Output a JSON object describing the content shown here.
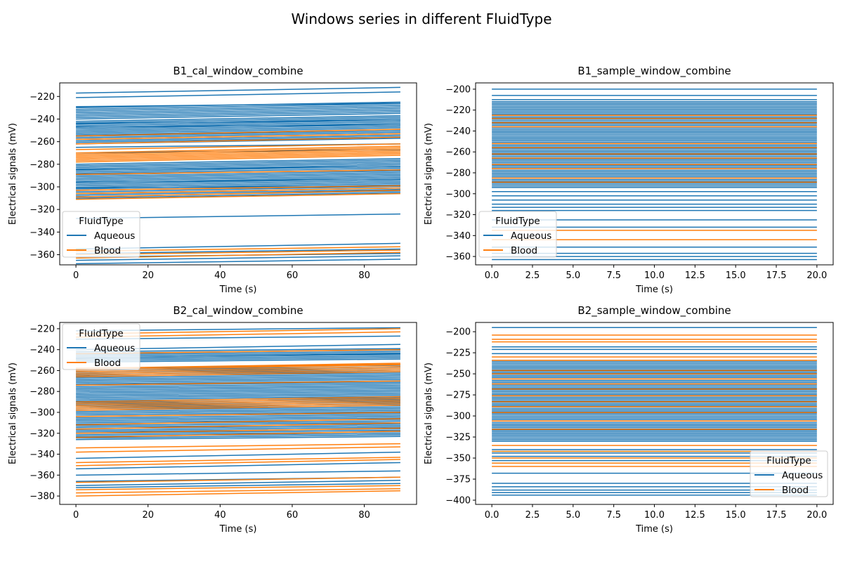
{
  "figure": {
    "suptitle": "Windows series in different FluidType",
    "colors": {
      "Aqueous": "#1f77b4",
      "Blood": "#ff7f0e"
    }
  },
  "chart_data": [
    {
      "type": "line",
      "title": "B1_cal_window_combine",
      "xlabel": "Time (s)",
      "ylabel": "Electrical signals (mV)",
      "xlim": [
        -4.5,
        94.5
      ],
      "ylim": [
        -369,
        -208
      ],
      "xticks": [
        0,
        20,
        40,
        60,
        80
      ],
      "xtick_labels": [
        "0",
        "20",
        "40",
        "60",
        "80"
      ],
      "yticks": [
        -220,
        -240,
        -260,
        -280,
        -300,
        -320,
        -340,
        -360
      ],
      "ytick_labels": [
        "−220",
        "−240",
        "−260",
        "−280",
        "−300",
        "−320",
        "−340",
        "−360"
      ],
      "legend": {
        "title": "FluidType",
        "entries": [
          "Aqueous",
          "Blood"
        ],
        "loc": "lower-left"
      },
      "series": [
        {
          "name": "Aqueous",
          "x": [
            0,
            90
          ],
          "bands": [
            [
              -240,
              -230
            ],
            [
              -262,
              -242
            ],
            [
              -310,
              -280
            ]
          ],
          "lines": [
            [
              -217,
              -212
            ],
            [
              -221,
              -216
            ],
            [
              -229,
              -226
            ],
            [
              -244,
              -241
            ],
            [
              -247,
              -245
            ],
            [
              -265,
              -262
            ],
            [
              -270,
              -267
            ],
            [
              -285,
              -282
            ],
            [
              -296,
              -293
            ],
            [
              -301,
              -299
            ],
            [
              -328,
              -324
            ],
            [
              -355,
              -350
            ],
            [
              -359,
              -355
            ],
            [
              -362,
              -359
            ],
            [
              -365,
              -361
            ],
            [
              -368,
              -364
            ]
          ]
        },
        {
          "name": "Blood",
          "x": [
            0,
            90
          ],
          "bands": [
            [
              -278,
              -270
            ]
          ],
          "lines": [
            [
              -255,
              -249
            ],
            [
              -258,
              -253
            ],
            [
              -262,
              -256
            ],
            [
              -267,
              -262
            ],
            [
              -289,
              -285
            ],
            [
              -303,
              -299
            ],
            [
              -306,
              -301
            ],
            [
              -309,
              -303
            ],
            [
              -311,
              -306
            ],
            [
              -357,
              -353
            ],
            [
              -360,
              -356
            ],
            [
              -363,
              -358
            ]
          ]
        }
      ]
    },
    {
      "type": "line",
      "title": "B1_sample_window_combine",
      "xlabel": "Time (s)",
      "ylabel": "Electrical signals (mV)",
      "xlim": [
        -1.0,
        21.0
      ],
      "ylim": [
        -368,
        -194
      ],
      "xticks": [
        0,
        2.5,
        5,
        7.5,
        10,
        12.5,
        15,
        17.5,
        20
      ],
      "xtick_labels": [
        "0.0",
        "2.5",
        "5.0",
        "7.5",
        "10.0",
        "12.5",
        "15.0",
        "17.5",
        "20.0"
      ],
      "yticks": [
        -200,
        -220,
        -240,
        -260,
        -280,
        -300,
        -320,
        -340,
        -360
      ],
      "ytick_labels": [
        "−200",
        "−220",
        "−240",
        "−260",
        "−280",
        "−300",
        "−320",
        "−340",
        "−360"
      ],
      "legend": {
        "title": "FluidType",
        "entries": [
          "Aqueous",
          "Blood"
        ],
        "loc": "lower-left"
      },
      "series": [
        {
          "name": "Aqueous",
          "x": [
            0,
            20
          ],
          "bands": [
            [
              -294,
              -212
            ]
          ],
          "lines": [
            [
              -200,
              -200
            ],
            [
              -206,
              -206
            ],
            [
              -210,
              -210
            ],
            [
              -298,
              -298
            ],
            [
              -302,
              -302
            ],
            [
              -306,
              -306
            ],
            [
              -310,
              -310
            ],
            [
              -313,
              -313
            ],
            [
              -316,
              -316
            ],
            [
              -325,
              -325
            ],
            [
              -332,
              -332
            ],
            [
              -351,
              -351
            ],
            [
              -357,
              -357
            ],
            [
              -360,
              -360
            ],
            [
              -363,
              -363
            ]
          ]
        },
        {
          "name": "Blood",
          "x": [
            0,
            20
          ],
          "bands": [],
          "lines": [
            [
              -225,
              -225
            ],
            [
              -228,
              -228
            ],
            [
              -232,
              -232
            ],
            [
              -236,
              -236
            ],
            [
              -252,
              -252
            ],
            [
              -256,
              -256
            ],
            [
              -262,
              -262
            ],
            [
              -266,
              -266
            ],
            [
              -272,
              -272
            ],
            [
              -276,
              -276
            ],
            [
              -285,
              -285
            ],
            [
              -289,
              -289
            ],
            [
              -335,
              -335
            ],
            [
              -344,
              -344
            ]
          ]
        }
      ]
    },
    {
      "type": "line",
      "title": "B2_cal_window_combine",
      "xlabel": "Time (s)",
      "ylabel": "Electrical signals (mV)",
      "xlim": [
        -4.5,
        94.5
      ],
      "ylim": [
        -388,
        -214
      ],
      "xticks": [
        0,
        20,
        40,
        60,
        80
      ],
      "xtick_labels": [
        "0",
        "20",
        "40",
        "60",
        "80"
      ],
      "yticks": [
        -220,
        -240,
        -260,
        -280,
        -300,
        -320,
        -340,
        -360,
        -380
      ],
      "ytick_labels": [
        "−220",
        "−240",
        "−260",
        "−280",
        "−300",
        "−320",
        "−340",
        "−360",
        "−380"
      ],
      "legend": {
        "title": "FluidType",
        "entries": [
          "Aqueous",
          "Blood"
        ],
        "loc": "upper-left"
      },
      "series": [
        {
          "name": "Aqueous",
          "x": [
            0,
            90
          ],
          "bands": [
            [
              -326,
              -258
            ],
            [
              -252,
              -242
            ]
          ],
          "lines": [
            [
              -222,
              -219
            ],
            [
              -230,
              -227
            ],
            [
              -240,
              -235
            ],
            [
              -248,
              -244
            ],
            [
              -344,
              -338
            ],
            [
              -354,
              -348
            ],
            [
              -360,
              -356
            ],
            [
              -366,
              -362
            ],
            [
              -370,
              -365
            ],
            [
              -372,
              -368
            ]
          ]
        },
        {
          "name": "Blood",
          "x": [
            0,
            90
          ],
          "bands": [
            [
              -266,
              -258
            ],
            [
              -298,
              -290
            ]
          ],
          "lines": [
            [
              -225,
              -220
            ],
            [
              -228,
              -223
            ],
            [
              -244,
              -240
            ],
            [
              -258,
              -254
            ],
            [
              -274,
              -270
            ],
            [
              -304,
              -300
            ],
            [
              -312,
              -306
            ],
            [
              -316,
              -310
            ],
            [
              -320,
              -315
            ],
            [
              -324,
              -318
            ],
            [
              -334,
              -330
            ],
            [
              -338,
              -333
            ],
            [
              -348,
              -343
            ],
            [
              -351,
              -345
            ],
            [
              -367,
              -362
            ],
            [
              -374,
              -370
            ],
            [
              -377,
              -373
            ],
            [
              -380,
              -375
            ]
          ]
        }
      ]
    },
    {
      "type": "line",
      "title": "B2_sample_window_combine",
      "xlabel": "Time (s)",
      "ylabel": "Electrical signals (mV)",
      "xlim": [
        -1.0,
        21.0
      ],
      "ylim": [
        -405,
        -189
      ],
      "xticks": [
        0,
        2.5,
        5,
        7.5,
        10,
        12.5,
        15,
        17.5,
        20
      ],
      "xtick_labels": [
        "0.0",
        "2.5",
        "5.0",
        "7.5",
        "10.0",
        "12.5",
        "15.0",
        "17.5",
        "20.0"
      ],
      "yticks": [
        -200,
        -225,
        -250,
        -275,
        -300,
        -325,
        -350,
        -375,
        -400
      ],
      "ytick_labels": [
        "−200",
        "−225",
        "−250",
        "−275",
        "−300",
        "−325",
        "−350",
        "−375",
        "−400"
      ],
      "legend": {
        "title": "FluidType",
        "entries": [
          "Aqueous",
          "Blood"
        ],
        "loc": "lower-right"
      },
      "series": [
        {
          "name": "Aqueous",
          "x": [
            0,
            20
          ],
          "bands": [
            [
              -330,
              -234
            ]
          ],
          "lines": [
            [
              -195,
              -195
            ],
            [
              -218,
              -218
            ],
            [
              -221,
              -221
            ],
            [
              -226,
              -226
            ],
            [
              -340,
              -340
            ],
            [
              -344,
              -344
            ],
            [
              -348,
              -348
            ],
            [
              -353,
              -353
            ],
            [
              -368,
              -368
            ],
            [
              -380,
              -380
            ],
            [
              -384,
              -384
            ],
            [
              -388,
              -388
            ],
            [
              -391,
              -391
            ],
            [
              -394,
              -394
            ]
          ]
        },
        {
          "name": "Blood",
          "x": [
            0,
            20
          ],
          "bands": [],
          "lines": [
            [
              -204,
              -204
            ],
            [
              -209,
              -209
            ],
            [
              -212,
              -212
            ],
            [
              -230,
              -230
            ],
            [
              -234,
              -234
            ],
            [
              -246,
              -246
            ],
            [
              -250,
              -250
            ],
            [
              -256,
              -256
            ],
            [
              -262,
              -262
            ],
            [
              -268,
              -268
            ],
            [
              -276,
              -276
            ],
            [
              -283,
              -283
            ],
            [
              -289,
              -289
            ],
            [
              -296,
              -296
            ],
            [
              -306,
              -306
            ],
            [
              -316,
              -316
            ],
            [
              -335,
              -335
            ],
            [
              -342,
              -342
            ],
            [
              -350,
              -350
            ],
            [
              -356,
              -356
            ],
            [
              -360,
              -360
            ]
          ]
        }
      ]
    }
  ]
}
